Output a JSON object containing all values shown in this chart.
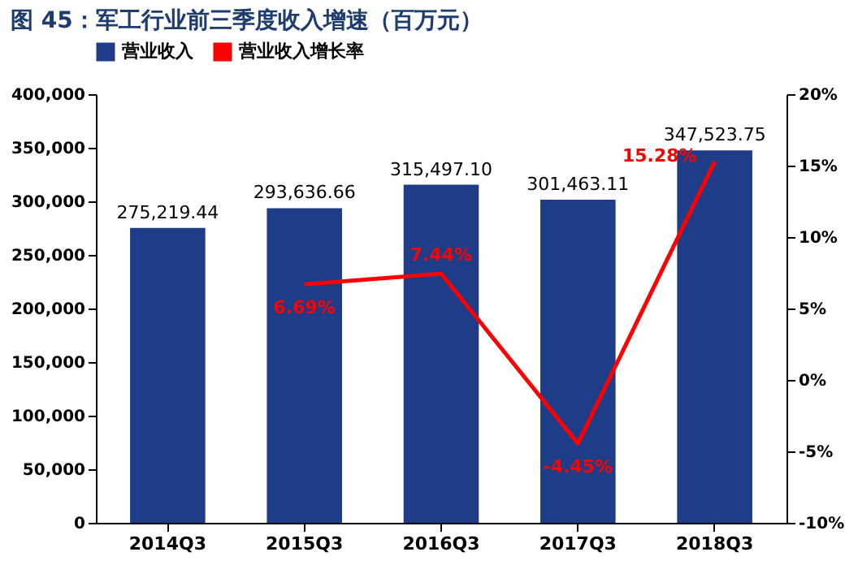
{
  "chart_data": {
    "type": "bar",
    "title": "图 45：军工行业前三季度收入增速（百万元）",
    "categories": [
      "2014Q3",
      "2015Q3",
      "2016Q3",
      "2017Q3",
      "2018Q3"
    ],
    "series": [
      {
        "name": "营业收入",
        "color": "#1f3c88",
        "values": [
          275219.44,
          293636.66,
          315497.1,
          301463.11,
          347523.75
        ],
        "value_labels": [
          "275,219.44",
          "293,636.66",
          "315,497.10",
          "301,463.11",
          "347,523.75"
        ]
      },
      {
        "name": "营业收入增长率",
        "type": "line",
        "axis": "y2",
        "color": "#ff0000",
        "values": [
          null,
          6.69,
          7.44,
          -4.45,
          15.28
        ],
        "value_labels": [
          null,
          "6.69%",
          "7.44%",
          "-4.45%",
          "15.28%"
        ]
      }
    ],
    "ylim": [
      0,
      400000
    ],
    "yticks": [
      {
        "value": 0,
        "label": "0"
      },
      {
        "value": 50000,
        "label": "50,000"
      },
      {
        "value": 100000,
        "label": "100,000"
      },
      {
        "value": 150000,
        "label": "150,000"
      },
      {
        "value": 200000,
        "label": "200,000"
      },
      {
        "value": 250000,
        "label": "250,000"
      },
      {
        "value": 300000,
        "label": "300,000"
      },
      {
        "value": 350000,
        "label": "350,000"
      },
      {
        "value": 400000,
        "label": "400,000"
      }
    ],
    "y2lim": [
      -10,
      20
    ],
    "y2ticks": [
      {
        "value": -10,
        "label": "-10%"
      },
      {
        "value": -5,
        "label": "-5%"
      },
      {
        "value": 0,
        "label": "0%"
      },
      {
        "value": 5,
        "label": "5%"
      },
      {
        "value": 10,
        "label": "10%"
      },
      {
        "value": 15,
        "label": "15%"
      },
      {
        "value": 20,
        "label": "20%"
      }
    ],
    "legend": "top",
    "grid": false,
    "marker": "none",
    "line_style": "solid"
  }
}
